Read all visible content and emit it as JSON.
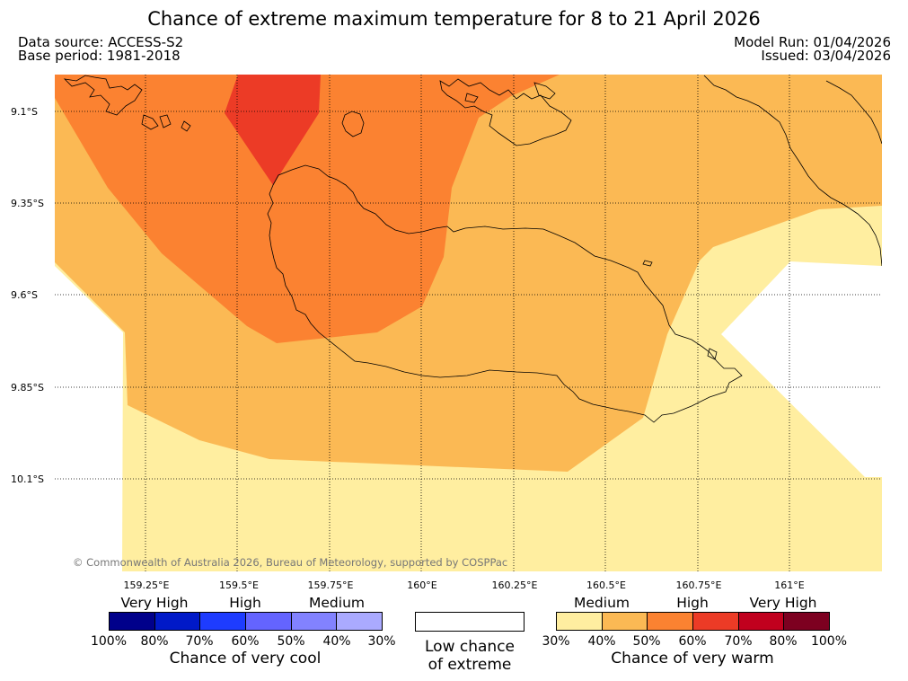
{
  "header": {
    "title": "Chance of extreme maximum temperature for 8 to 21 April 2026",
    "data_source": "Data source: ACCESS-S2",
    "base_period": "Base period: 1981-2018",
    "model_run": "Model Run: 01/04/2026",
    "issued": "Issued: 03/04/2026"
  },
  "map": {
    "latitudes": [
      "9.1°S",
      "9.35°S",
      "9.6°S",
      "9.85°S",
      "10.1°S"
    ],
    "longitudes": [
      "159.25°E",
      "159.5°E",
      "159.75°E",
      "160°E",
      "160.25°E",
      "160.5°E",
      "160.75°E",
      "161°E"
    ],
    "copyright": "© Commonwealth of Australia 2026, Bureau of Meteorology, supported by COSPPac",
    "colors": {
      "medium": "#ffeea0",
      "m40": "#fbb954",
      "high50": "#fb8231",
      "high60": "#ec3b26",
      "background": "#ffffff"
    }
  },
  "legend": {
    "cool": {
      "categories": [
        "Very High",
        "High",
        "Medium"
      ],
      "percents": [
        "100%",
        "80%",
        "70%",
        "60%",
        "50%",
        "40%",
        "30%"
      ],
      "colors": [
        "#00008b",
        "#0019c8",
        "#1e3cff",
        "#6464ff",
        "#8282ff",
        "#aaaaff"
      ],
      "title": "Chance of very cool"
    },
    "low": {
      "line1": "Low chance",
      "line2": "of extreme",
      "color": "#ffffff"
    },
    "warm": {
      "categories": [
        "Medium",
        "High",
        "Very High"
      ],
      "percents": [
        "30%",
        "40%",
        "50%",
        "60%",
        "70%",
        "80%",
        "100%"
      ],
      "colors": [
        "#ffeea0",
        "#fbb954",
        "#fb8231",
        "#ec3b26",
        "#c1001e",
        "#7d0020"
      ],
      "title": "Chance of very warm"
    }
  }
}
